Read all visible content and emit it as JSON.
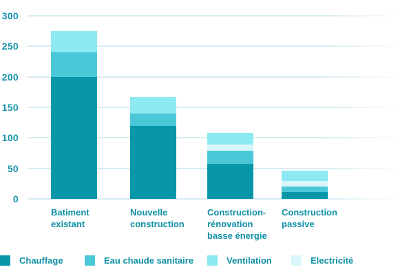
{
  "chart_data": {
    "type": "bar",
    "stacked": true,
    "title": "",
    "xlabel": "",
    "ylabel": "",
    "categories": [
      "Batiment existant",
      "Nouvelle construction",
      "Construction-rénovation basse énergie",
      "Construction passive"
    ],
    "category_label_lines": [
      [
        "Batiment",
        "existant"
      ],
      [
        "Nouvelle",
        "construction"
      ],
      [
        "Construction-",
        "rénovation",
        "basse énergie"
      ],
      [
        "Construction",
        "passive"
      ]
    ],
    "series": [
      {
        "name": "Chauffage",
        "color": "#0797a9",
        "values": [
          200,
          120,
          58,
          11
        ]
      },
      {
        "name": "Eau chaude sanitaire",
        "color": "#4bc8d8",
        "values": [
          40,
          20,
          21,
          9
        ]
      },
      {
        "name": "Electricité",
        "color": "#d9f7fb",
        "values": [
          0,
          0,
          10,
          9
        ]
      },
      {
        "name": "Ventilation",
        "color": "#8de9f2",
        "values": [
          35,
          27,
          19,
          17
        ]
      }
    ],
    "stack_order_bottom_to_top": [
      "Chauffage",
      "Eau chaude sanitaire",
      "Electricité",
      "Ventilation"
    ],
    "totals": [
      275,
      167,
      108,
      46
    ],
    "ylim": [
      0,
      300
    ],
    "yticks": [
      0,
      50,
      100,
      150,
      200,
      250,
      300
    ],
    "grid": true,
    "legend_position": "bottom"
  },
  "legend": {
    "items": [
      {
        "label": "Chauffage",
        "color": "#0797a9"
      },
      {
        "label": "Eau chaude sanitaire",
        "color": "#4bc8d8"
      },
      {
        "label": "Ventilation",
        "color": "#8de9f2"
      },
      {
        "label": "Electricité",
        "color": "#d9f7fb"
      }
    ]
  },
  "colors": {
    "background": "#ffffff",
    "text_teal": "#0d8fa5",
    "axis_text": "#1794a9",
    "gridline": "#d7ecf3"
  }
}
